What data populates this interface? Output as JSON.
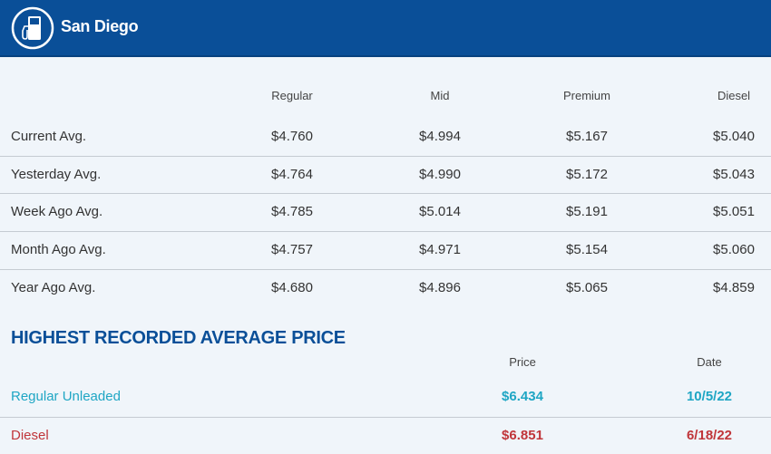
{
  "header": {
    "title": "San Diego",
    "icon": "gas-pump-icon"
  },
  "prices": {
    "columns": [
      "Regular",
      "Mid",
      "Premium",
      "Diesel"
    ],
    "rows": [
      {
        "label": "Current Avg.",
        "values": [
          "$4.760",
          "$4.994",
          "$5.167",
          "$5.040"
        ]
      },
      {
        "label": "Yesterday Avg.",
        "values": [
          "$4.764",
          "$4.990",
          "$5.172",
          "$5.043"
        ]
      },
      {
        "label": "Week Ago Avg.",
        "values": [
          "$4.785",
          "$5.014",
          "$5.191",
          "$5.051"
        ]
      },
      {
        "label": "Month Ago Avg.",
        "values": [
          "$4.757",
          "$4.971",
          "$5.154",
          "$5.060"
        ]
      },
      {
        "label": "Year Ago Avg.",
        "values": [
          "$4.680",
          "$4.896",
          "$5.065",
          "$4.859"
        ]
      }
    ]
  },
  "highest": {
    "title": "HIGHEST RECORDED AVERAGE PRICE",
    "columns": [
      "Price",
      "Date"
    ],
    "rows": [
      {
        "label": "Regular Unleaded",
        "price": "$6.434",
        "date": "10/5/22",
        "color": "#1fa6c4"
      },
      {
        "label": "Diesel",
        "price": "$6.851",
        "date": "6/18/22",
        "color": "#c0353a"
      }
    ]
  }
}
